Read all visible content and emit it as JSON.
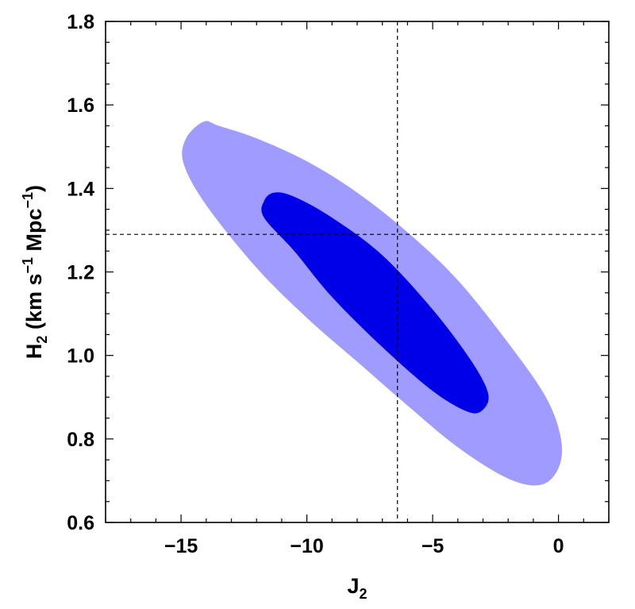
{
  "chart_data": {
    "type": "contour",
    "xlabel": {
      "main": "J",
      "sub": "2"
    },
    "ylabel": {
      "main": "H",
      "sub": "2",
      "units_a": " (km s",
      "sup_a": "−1",
      "units_b": " Mpc",
      "sup_b": "−1",
      "units_c": ")"
    },
    "xlim": [
      -18,
      2
    ],
    "ylim": [
      0.6,
      1.8
    ],
    "x_major_ticks": [
      {
        "value": -15,
        "label": "−15"
      },
      {
        "value": -10,
        "label": "−10"
      },
      {
        "value": -5,
        "label": "−5"
      },
      {
        "value": 0,
        "label": "0"
      }
    ],
    "y_major_ticks": [
      {
        "value": 0.6,
        "label": "0.6"
      },
      {
        "value": 0.8,
        "label": "0.8"
      },
      {
        "value": 1.0,
        "label": "1.0"
      },
      {
        "value": 1.2,
        "label": "1.2"
      },
      {
        "value": 1.4,
        "label": "1.4"
      },
      {
        "value": 1.6,
        "label": "1.6"
      },
      {
        "value": 1.8,
        "label": "1.8"
      }
    ],
    "reference_lines": {
      "x": -6.4,
      "y": 1.29,
      "style": "dashed"
    },
    "regions": [
      {
        "level": "outer",
        "color": "#a09bff",
        "boundary": [
          [
            -14.1,
            1.56
          ],
          [
            -13.5,
            1.55
          ],
          [
            -12.0,
            1.52
          ],
          [
            -10.0,
            1.465
          ],
          [
            -8.0,
            1.39
          ],
          [
            -6.0,
            1.295
          ],
          [
            -4.0,
            1.18
          ],
          [
            -2.0,
            1.03
          ],
          [
            -0.5,
            0.9
          ],
          [
            0.1,
            0.8
          ],
          [
            0.0,
            0.73
          ],
          [
            -0.7,
            0.69
          ],
          [
            -2.0,
            0.705
          ],
          [
            -4.0,
            0.78
          ],
          [
            -6.0,
            0.88
          ],
          [
            -8.0,
            0.985
          ],
          [
            -10.0,
            1.09
          ],
          [
            -12.0,
            1.21
          ],
          [
            -14.0,
            1.36
          ],
          [
            -14.9,
            1.46
          ],
          [
            -14.8,
            1.52
          ]
        ]
      },
      {
        "level": "inner",
        "color": "#0000e8",
        "boundary": [
          [
            -11.3,
            1.39
          ],
          [
            -10.5,
            1.38
          ],
          [
            -9.0,
            1.33
          ],
          [
            -7.0,
            1.24
          ],
          [
            -5.0,
            1.11
          ],
          [
            -3.5,
            0.99
          ],
          [
            -2.8,
            0.91
          ],
          [
            -3.0,
            0.87
          ],
          [
            -3.6,
            0.865
          ],
          [
            -5.0,
            0.915
          ],
          [
            -7.0,
            1.02
          ],
          [
            -9.0,
            1.14
          ],
          [
            -10.5,
            1.25
          ],
          [
            -11.7,
            1.33
          ],
          [
            -11.7,
            1.37
          ]
        ]
      }
    ]
  }
}
